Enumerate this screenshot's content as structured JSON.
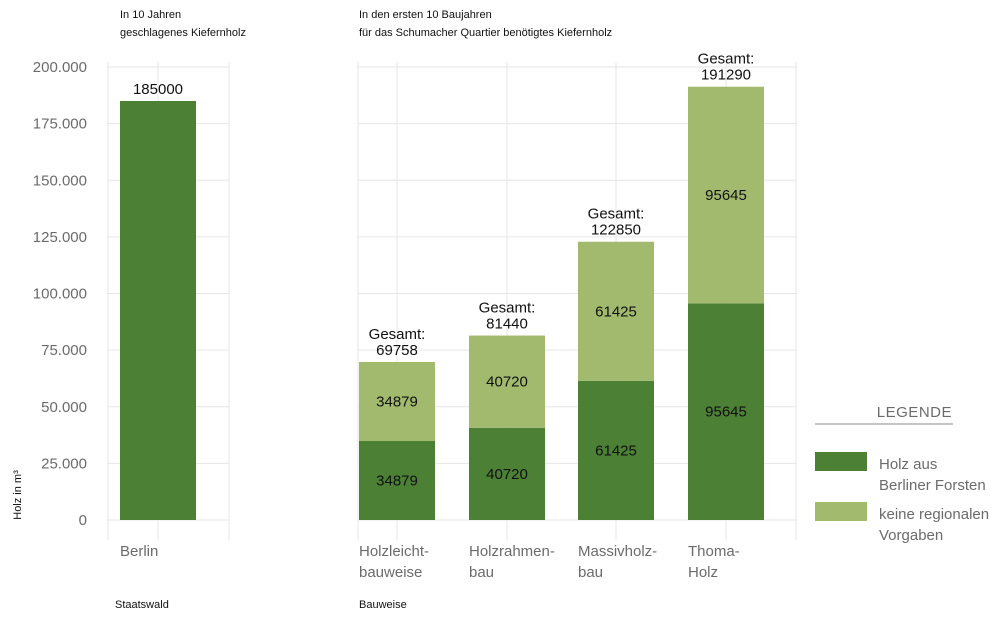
{
  "chart_data": {
    "type": "bar",
    "stacked": true,
    "ylabel": "Holz in m³",
    "ylim": [
      0,
      200000
    ],
    "yticks": [
      0,
      25000,
      50000,
      75000,
      100000,
      125000,
      150000,
      175000,
      200000
    ],
    "ytick_labels": [
      "0",
      "25.000",
      "50.000",
      "75.000",
      "100.000",
      "125.000",
      "150.000",
      "175.000",
      "200.000"
    ],
    "grid": true,
    "legend": {
      "title": "LEGENDE",
      "position": "right",
      "items": [
        {
          "name_lines": [
            "Holz aus",
            "Berliner Forsten"
          ],
          "color": "#4b8035"
        },
        {
          "name_lines": [
            "keine regionalen",
            "Vorgaben"
          ],
          "color": "#a1ba6d"
        }
      ]
    },
    "panels": [
      {
        "title_lines": [
          "In 10 Jahren",
          "geschlagenes Kiefernholz"
        ],
        "xlabel": "Staatswald",
        "bars": [
          {
            "category_lines": [
              "Berlin"
            ],
            "dark": 185000,
            "light": 0,
            "top_label_lines": [
              "185000"
            ],
            "dark_label": "",
            "light_label": ""
          }
        ]
      },
      {
        "title_lines": [
          "In den ersten 10 Baujahren",
          "für das Schumacher Quartier benötigtes Kiefernholz"
        ],
        "xlabel": "Bauweise",
        "bars": [
          {
            "category_lines": [
              "Holzleicht-",
              "bauweise"
            ],
            "dark": 34879,
            "light": 34879,
            "top_label_lines": [
              "Gesamt:",
              "69758"
            ],
            "dark_label": "34879",
            "light_label": "34879"
          },
          {
            "category_lines": [
              "Holzrahmen-",
              "bau"
            ],
            "dark": 40720,
            "light": 40720,
            "top_label_lines": [
              "Gesamt:",
              "81440"
            ],
            "dark_label": "40720",
            "light_label": "40720"
          },
          {
            "category_lines": [
              "Massivholz-",
              "bau"
            ],
            "dark": 61425,
            "light": 61425,
            "top_label_lines": [
              "Gesamt:",
              "122850"
            ],
            "dark_label": "61425",
            "light_label": "61425"
          },
          {
            "category_lines": [
              "Thoma-",
              "Holz"
            ],
            "dark": 95645,
            "light": 95645,
            "top_label_lines": [
              "Gesamt:",
              "191290"
            ],
            "dark_label": "95645",
            "light_label": "95645"
          }
        ]
      }
    ]
  }
}
